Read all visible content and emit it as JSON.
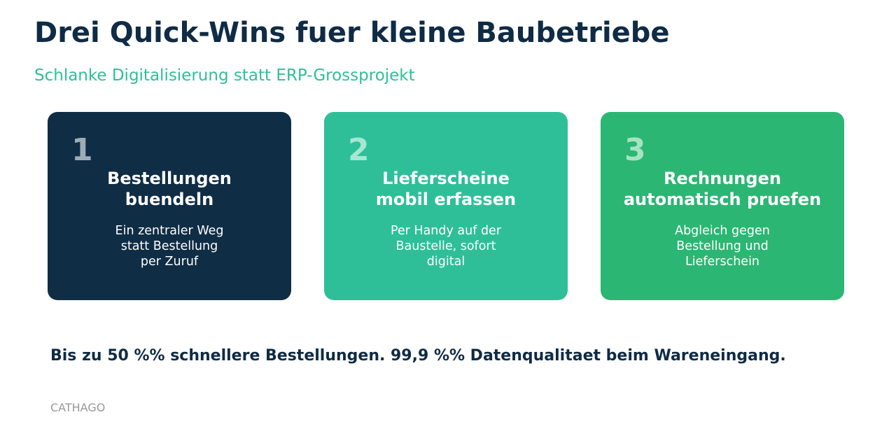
{
  "header": {
    "title": "Drei Quick-Wins fuer kleine Baubetriebe",
    "subtitle": "Schlanke Digitalisierung statt ERP-Grossprojekt"
  },
  "cards": [
    {
      "number": 1,
      "color": "#0f2d45",
      "number_color": "#9eacb7",
      "title_lines": [
        "Bestellungen",
        "buendeln"
      ],
      "text_lines": [
        "Ein zentraler Weg",
        "statt Bestellung",
        "per Zuruf"
      ]
    },
    {
      "number": 2,
      "color": "#2ebf99",
      "number_color": "#a6e6d2",
      "title_lines": [
        "Lieferscheine",
        "mobil erfassen"
      ],
      "text_lines": [
        "Per Handy auf der",
        "Baustelle, sofort",
        "digital"
      ]
    },
    {
      "number": 3,
      "color": "#2cb673",
      "number_color": "#a5e3c3",
      "title_lines": [
        "Rechnungen",
        "automatisch pruefen"
      ],
      "text_lines": [
        "Abgleich gegen",
        "Bestellung und",
        "Lieferschein"
      ]
    }
  ],
  "footer": {
    "statement": "Bis zu 50 %% schnellere Bestellungen. 99,9 %% Datenqualitaet beim Wareneingang.",
    "brand": "CATHAGO"
  }
}
